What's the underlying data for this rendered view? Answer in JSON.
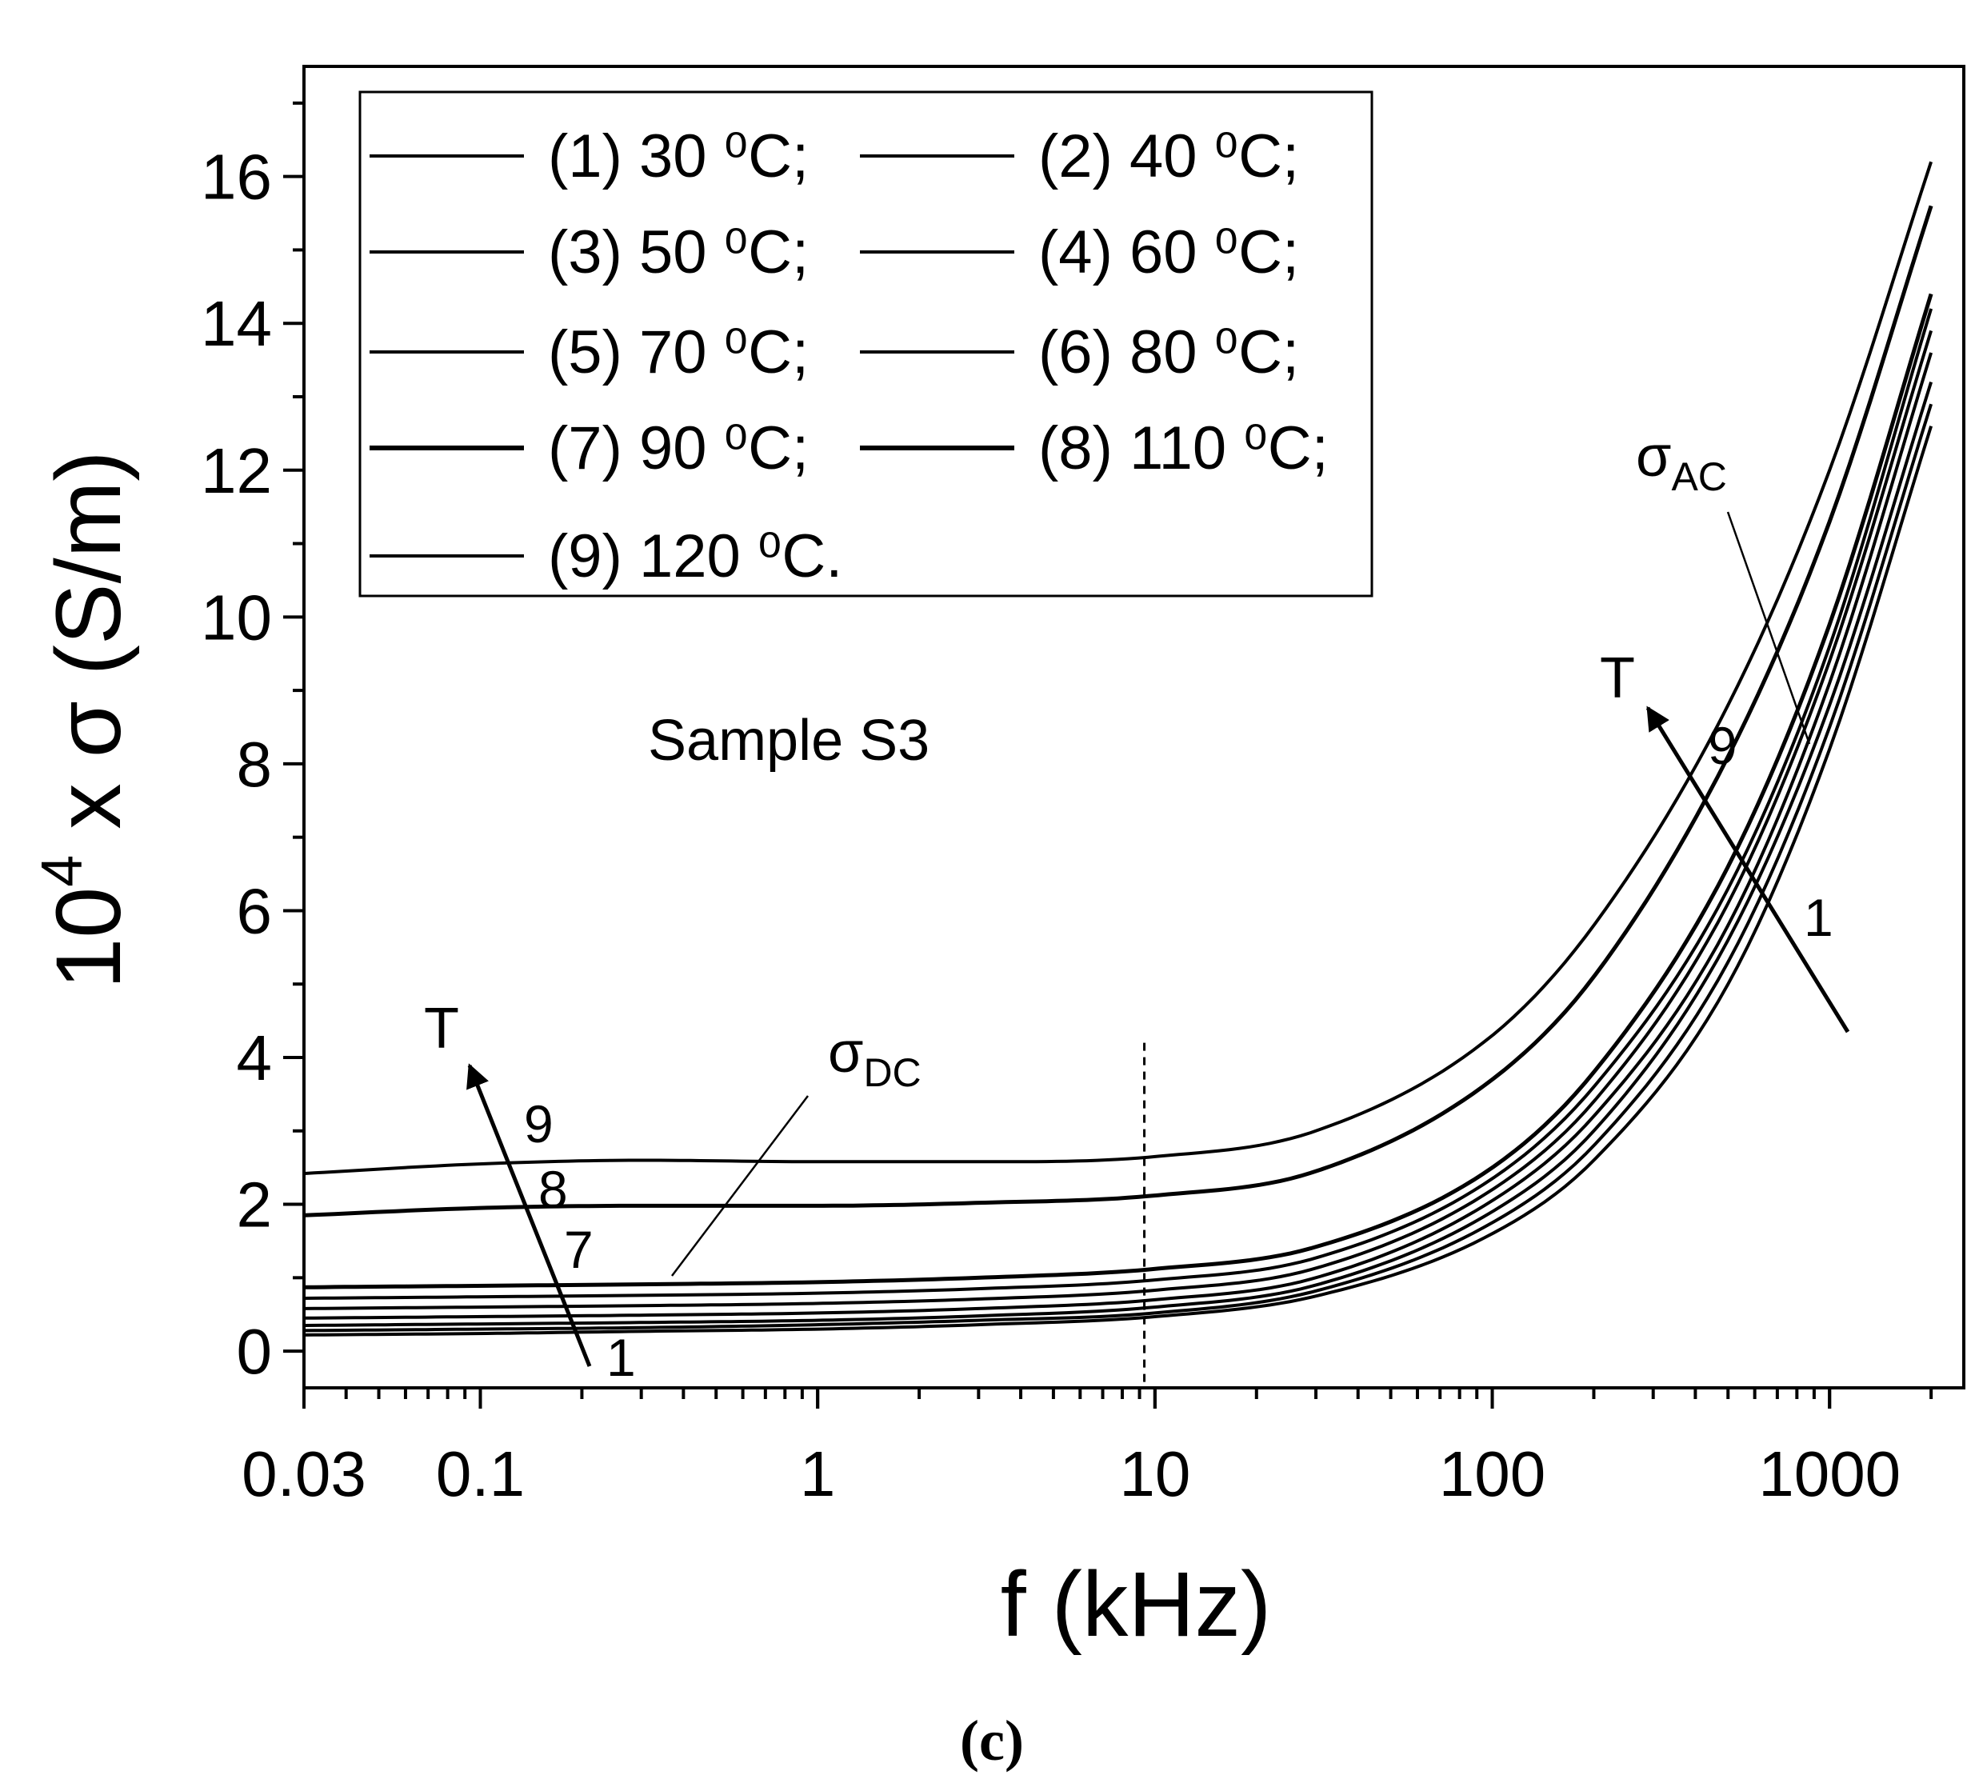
{
  "chart_data": {
    "type": "line",
    "title": "",
    "panel_label": "(c)",
    "xlabel": "f (kHz)",
    "ylabel": {
      "prefix": "10",
      "sup": "4",
      "suffix": " x σ (S/m)"
    },
    "x_scale": "log",
    "xlim": [
      0.03,
      2500
    ],
    "ylim": [
      -0.5,
      17.5
    ],
    "x_ticks": [
      {
        "value": 0.03,
        "label": "0.03"
      },
      {
        "value": 0.1,
        "label": "0.1"
      },
      {
        "value": 1,
        "label": "1"
      },
      {
        "value": 10,
        "label": "10"
      },
      {
        "value": 100,
        "label": "100"
      },
      {
        "value": 1000,
        "label": "1000"
      }
    ],
    "y_ticks": [
      {
        "value": 0,
        "label": "0"
      },
      {
        "value": 2,
        "label": "2"
      },
      {
        "value": 4,
        "label": "4"
      },
      {
        "value": 6,
        "label": "6"
      },
      {
        "value": 8,
        "label": "8"
      },
      {
        "value": 10,
        "label": "10"
      },
      {
        "value": 12,
        "label": "12"
      },
      {
        "value": 14,
        "label": "14"
      },
      {
        "value": 16,
        "label": "16"
      }
    ],
    "grid": false,
    "legend_position": "top-left",
    "x": [
      0.03,
      0.1,
      0.3,
      1,
      3,
      10,
      30,
      100,
      200,
      500,
      1000,
      2000
    ],
    "series": [
      {
        "name": "(1) 30 ⁰C;",
        "values": [
          0.22,
          0.24,
          0.27,
          0.3,
          0.36,
          0.47,
          0.75,
          1.6,
          2.6,
          5.0,
          8.2,
          12.6
        ]
      },
      {
        "name": "(2) 40 ⁰C;",
        "values": [
          0.28,
          0.3,
          0.32,
          0.36,
          0.42,
          0.52,
          0.82,
          1.75,
          2.8,
          5.3,
          8.5,
          12.9
        ]
      },
      {
        "name": "(3) 50 ⁰C;",
        "values": [
          0.35,
          0.37,
          0.39,
          0.42,
          0.48,
          0.6,
          0.9,
          1.9,
          3.0,
          5.6,
          8.8,
          13.2
        ]
      },
      {
        "name": "(4) 60 ⁰C;",
        "values": [
          0.45,
          0.47,
          0.49,
          0.52,
          0.58,
          0.7,
          1.0,
          2.05,
          3.2,
          5.8,
          9.1,
          13.6
        ]
      },
      {
        "name": "(5) 70 ⁰C;",
        "values": [
          0.58,
          0.6,
          0.62,
          0.65,
          0.71,
          0.83,
          1.13,
          2.2,
          3.4,
          6.1,
          9.4,
          13.9
        ]
      },
      {
        "name": "(6) 80 ⁰C;",
        "values": [
          0.72,
          0.74,
          0.76,
          0.79,
          0.85,
          0.97,
          1.27,
          2.35,
          3.6,
          6.3,
          9.6,
          14.2
        ]
      },
      {
        "name": "(7) 90 ⁰C;",
        "values": [
          0.87,
          0.89,
          0.91,
          0.94,
          1.0,
          1.12,
          1.42,
          2.5,
          3.8,
          6.6,
          9.9,
          14.4
        ]
      },
      {
        "name": "(8) 110 ⁰C;",
        "values": [
          1.85,
          1.95,
          1.98,
          1.98,
          2.02,
          2.12,
          2.45,
          3.7,
          5.1,
          8.1,
          11.3,
          15.6
        ]
      },
      {
        "name": "(9) 120 ⁰C.",
        "values": [
          2.42,
          2.55,
          2.6,
          2.58,
          2.58,
          2.65,
          3.0,
          4.3,
          5.8,
          8.8,
          12.0,
          16.2
        ]
      }
    ],
    "annotations": {
      "sample_text": "Sample S3",
      "t_label_low": "T",
      "t_label_high": "T",
      "low_curve_labels": [
        "9",
        "8",
        "7",
        "1"
      ],
      "high_curve_labels": [
        "9",
        "1"
      ],
      "sigma_dc": {
        "main": "σ",
        "sub": "DC"
      },
      "sigma_ac": {
        "main": "σ",
        "sub": "AC"
      },
      "dashed_line_x": 9.3
    }
  }
}
